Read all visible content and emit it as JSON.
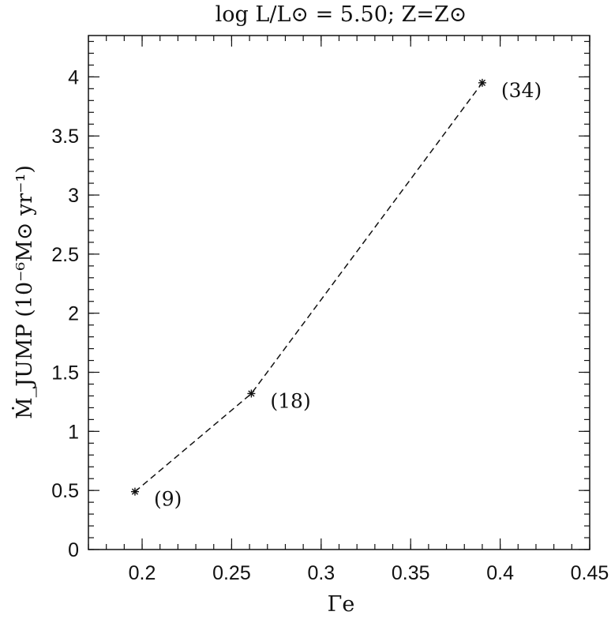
{
  "chart_data": {
    "type": "line",
    "title": "log L/L⊙ = 5.50; Z=Z⊙",
    "xlabel": "Γe",
    "ylabel": "Ṁ_JUMP (10⁻⁶M⊙ yr⁻¹)",
    "xlim": [
      0.17,
      0.45
    ],
    "ylim": [
      0,
      4.35
    ],
    "xticks": [
      0.2,
      0.25,
      0.3,
      0.35,
      0.4,
      0.45
    ],
    "xtick_labels": [
      "0.2",
      "0.25",
      "0.3",
      "0.35",
      "0.4",
      "0.45"
    ],
    "yticks": [
      0,
      0.5,
      1,
      1.5,
      2,
      2.5,
      3,
      3.5,
      4
    ],
    "ytick_labels": [
      "0",
      "0.5",
      "1",
      "1.5",
      "2",
      "2.5",
      "3",
      "3.5",
      "4"
    ],
    "x_minor_step": 0.01,
    "y_minor_step": 0.1,
    "grid": false,
    "line_style": "dashed",
    "marker": "asterisk",
    "series": [
      {
        "x": [
          0.196,
          0.261,
          0.39
        ],
        "y": [
          0.49,
          1.32,
          3.95
        ],
        "labels": [
          "(9)",
          "(18)",
          "(34)"
        ]
      }
    ]
  }
}
